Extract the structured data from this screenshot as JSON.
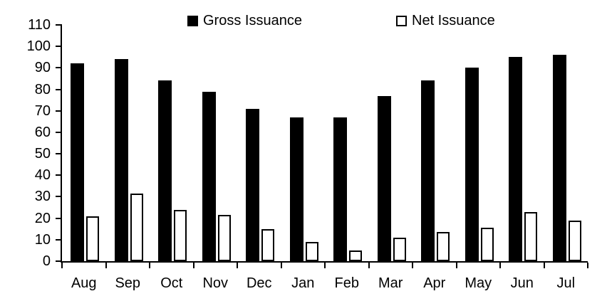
{
  "chart_data": {
    "type": "bar",
    "title": "",
    "xlabel": "",
    "ylabel": "",
    "categories": [
      "Aug",
      "Sep",
      "Oct",
      "Nov",
      "Dec",
      "Jan",
      "Feb",
      "Mar",
      "Apr",
      "May",
      "Jun",
      "Jul"
    ],
    "series": [
      {
        "name": "Gross Issuance",
        "style": "solid",
        "fill_color": "#000000",
        "values": [
          92,
          94,
          84,
          79,
          71,
          67,
          67,
          77,
          84,
          90,
          95,
          96
        ]
      },
      {
        "name": "Net Issuance",
        "style": "outline",
        "fill_color": "#ffffff",
        "border_color": "#000000",
        "values": [
          21,
          31.5,
          24,
          21.5,
          15,
          9,
          5,
          11,
          13.5,
          15.5,
          23,
          19
        ]
      }
    ],
    "ylim": [
      0,
      110
    ],
    "yticks": [
      0,
      10,
      20,
      30,
      40,
      50,
      60,
      70,
      80,
      90,
      100,
      110
    ],
    "grid": false,
    "legend_position": "top"
  },
  "colors": {
    "axis": "#000000",
    "background": "#ffffff",
    "bar_gross": "#000000",
    "bar_net_fill": "#ffffff",
    "bar_net_border": "#000000"
  }
}
